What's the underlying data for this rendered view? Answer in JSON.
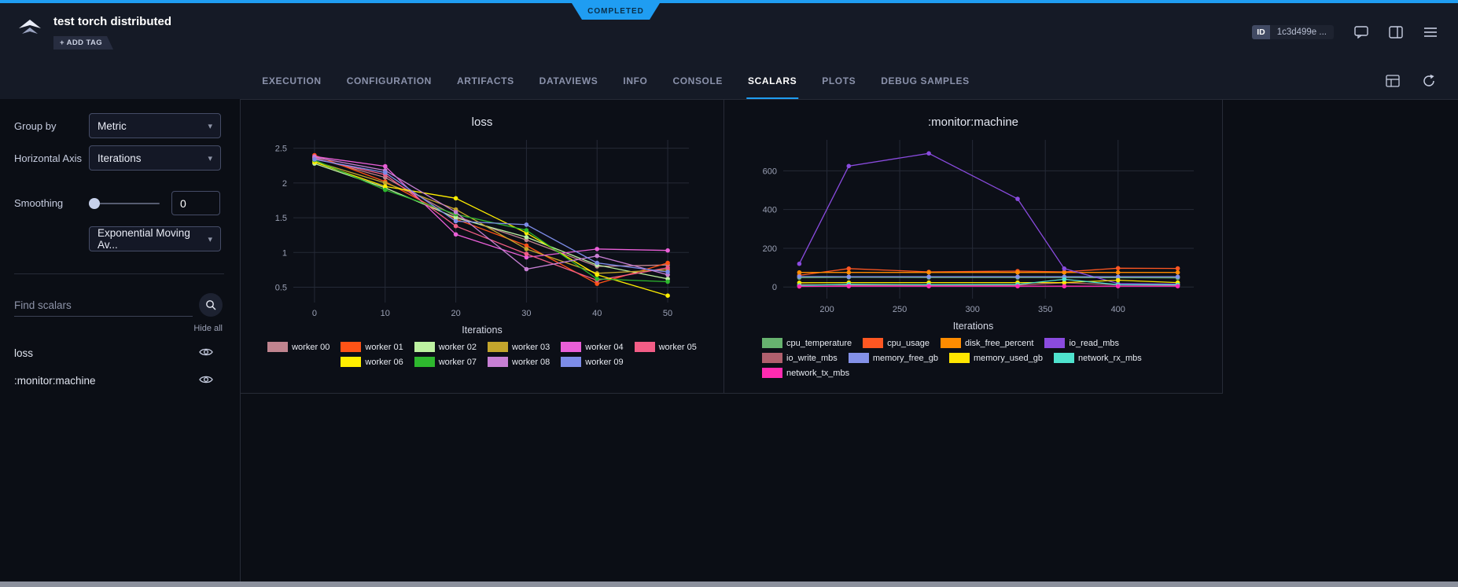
{
  "status_badge": {
    "label": "COMPLETED",
    "color": "#1f9df2"
  },
  "header": {
    "title": "test torch distributed",
    "add_tag": "+ ADD TAG",
    "id_label": "ID",
    "id_value": "1c3d499e ..."
  },
  "icons": {
    "caret": "▾"
  },
  "tabs": {
    "items": [
      {
        "label": "EXECUTION",
        "active": false
      },
      {
        "label": "CONFIGURATION",
        "active": false
      },
      {
        "label": "ARTIFACTS",
        "active": false
      },
      {
        "label": "DATAVIEWS",
        "active": false
      },
      {
        "label": "INFO",
        "active": false
      },
      {
        "label": "CONSOLE",
        "active": false
      },
      {
        "label": "SCALARS",
        "active": true
      },
      {
        "label": "PLOTS",
        "active": false
      },
      {
        "label": "DEBUG SAMPLES",
        "active": false
      }
    ]
  },
  "sidebar": {
    "group_by_label": "Group by",
    "group_by_value": "Metric",
    "horizontal_axis_label": "Horizontal Axis",
    "horizontal_axis_value": "Iterations",
    "smoothing_label": "Smoothing",
    "smoothing_value": "0",
    "smoothing_type": "Exponential Moving Av...",
    "find_placeholder": "Find scalars",
    "hide_all": "Hide all",
    "metrics": [
      {
        "label": "loss"
      },
      {
        "label": ":monitor:machine"
      }
    ]
  },
  "chart_data": [
    {
      "type": "line",
      "title": "loss",
      "xlabel": "Iterations",
      "ylabel": "",
      "grid": true,
      "legend_position": "bottom",
      "x": [
        0,
        10,
        20,
        30,
        40,
        50
      ],
      "xticks": [
        0,
        10,
        20,
        30,
        40,
        50
      ],
      "yticks": [
        0.5,
        1,
        1.5,
        2,
        2.5
      ],
      "xlim": [
        -3,
        53
      ],
      "ylim": [
        0.28,
        2.62
      ],
      "series": [
        {
          "name": "worker 00",
          "color": "#c0848f",
          "values": [
            2.36,
            2.08,
            1.52,
            1.18,
            0.8,
            0.82
          ]
        },
        {
          "name": "worker 01",
          "color": "#ff5316",
          "values": [
            2.4,
            2.02,
            1.48,
            1.1,
            0.55,
            0.85
          ]
        },
        {
          "name": "worker 02",
          "color": "#bdf2a1",
          "values": [
            2.28,
            1.93,
            1.5,
            1.22,
            0.82,
            0.62
          ]
        },
        {
          "name": "worker 03",
          "color": "#c3a52c",
          "values": [
            2.31,
            2.0,
            1.62,
            1.05,
            0.7,
            0.75
          ]
        },
        {
          "name": "worker 04",
          "color": "#ea5fd8",
          "values": [
            2.38,
            2.24,
            1.26,
            0.93,
            1.05,
            1.03
          ]
        },
        {
          "name": "worker 05",
          "color": "#f25d86",
          "values": [
            2.35,
            2.12,
            1.38,
            0.98,
            0.6,
            0.78
          ]
        },
        {
          "name": "worker 06",
          "color": "#ffee00",
          "values": [
            2.3,
            1.95,
            1.78,
            1.28,
            0.68,
            0.38
          ]
        },
        {
          "name": "worker 07",
          "color": "#2eb82e",
          "values": [
            2.33,
            1.9,
            1.55,
            1.32,
            0.62,
            0.58
          ]
        },
        {
          "name": "worker 08",
          "color": "#c77fd4",
          "values": [
            2.37,
            2.18,
            1.58,
            0.76,
            0.95,
            0.68
          ]
        },
        {
          "name": "worker 09",
          "color": "#7d8ce8",
          "values": [
            2.34,
            2.15,
            1.45,
            1.4,
            0.85,
            0.72
          ]
        }
      ]
    },
    {
      "type": "line",
      "title": ":monitor:machine",
      "xlabel": "Iterations",
      "ylabel": "",
      "grid": true,
      "legend_position": "bottom",
      "x": [
        181,
        215,
        270,
        331,
        363,
        400,
        441
      ],
      "xticks": [
        200,
        250,
        300,
        350,
        400
      ],
      "yticks": [
        0,
        200,
        400,
        600
      ],
      "xlim": [
        170,
        452
      ],
      "ylim": [
        -60,
        760
      ],
      "series": [
        {
          "name": "cpu_temperature",
          "color": "#67b26f",
          "values": [
            48,
            50,
            49,
            49,
            49,
            48,
            47
          ]
        },
        {
          "name": "cpu_usage",
          "color": "#ff5722",
          "values": [
            60,
            95,
            78,
            82,
            78,
            97,
            96
          ]
        },
        {
          "name": "disk_free_percent",
          "color": "#ff8c00",
          "values": [
            75,
            75,
            75,
            75,
            75,
            75,
            75
          ]
        },
        {
          "name": "io_read_mbs",
          "color": "#8a4bdf",
          "values": [
            120,
            625,
            690,
            455,
            95,
            18,
            15
          ]
        },
        {
          "name": "io_write_mbs",
          "color": "#b05f6d",
          "values": [
            12,
            10,
            9,
            10,
            22,
            11,
            10
          ]
        },
        {
          "name": "memory_free_gb",
          "color": "#8491e8",
          "values": [
            54,
            53,
            53,
            53,
            53,
            53,
            53
          ]
        },
        {
          "name": "memory_used_gb",
          "color": "#ffe600",
          "values": [
            22,
            23,
            23,
            23,
            23,
            35,
            23
          ]
        },
        {
          "name": "network_rx_mbs",
          "color": "#4fe3ce",
          "values": [
            8,
            14,
            12,
            13,
            40,
            12,
            11
          ]
        },
        {
          "name": "network_tx_mbs",
          "color": "#ff2bb1",
          "values": [
            3,
            4,
            4,
            4,
            4,
            4,
            4
          ]
        }
      ]
    }
  ]
}
